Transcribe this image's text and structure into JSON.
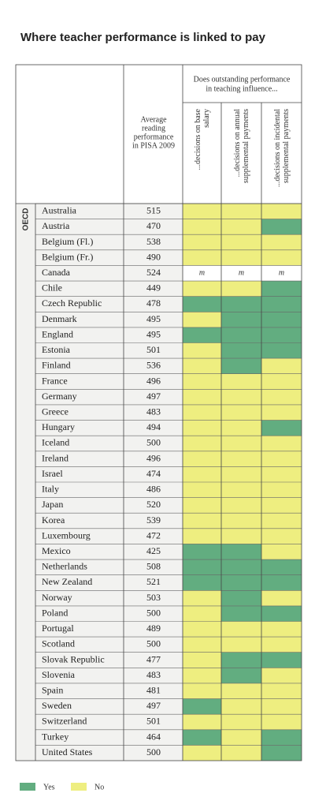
{
  "title": "Where teacher performance is linked to pay",
  "table": {
    "group_label": "OECD",
    "score_header": [
      "Average",
      "reading",
      "performance",
      "in PISA 2009"
    ],
    "influence_header": [
      "Does outstanding performance",
      "in teaching influence..."
    ],
    "columns": [
      [
        "...decisions on base",
        "salary"
      ],
      [
        "...decisions on annual",
        "supplemental payments"
      ],
      [
        "...decisions on incidental",
        "supplemental payments"
      ]
    ],
    "rows": [
      {
        "country": "Australia",
        "score": "515",
        "cells": [
          false,
          false,
          false
        ]
      },
      {
        "country": "Austria",
        "score": "470",
        "cells": [
          false,
          false,
          true
        ]
      },
      {
        "country": "Belgium (Fl.)",
        "score": "538",
        "cells": [
          false,
          false,
          false
        ]
      },
      {
        "country": "Belgium (Fr.)",
        "score": "490",
        "cells": [
          false,
          false,
          false
        ]
      },
      {
        "country": "Canada",
        "score": "524",
        "cells": [
          "m",
          "m",
          "m"
        ]
      },
      {
        "country": "Chile",
        "score": "449",
        "cells": [
          false,
          false,
          true
        ]
      },
      {
        "country": "Czech Republic",
        "score": "478",
        "cells": [
          true,
          true,
          true
        ]
      },
      {
        "country": "Denmark",
        "score": "495",
        "cells": [
          false,
          true,
          true
        ]
      },
      {
        "country": "England",
        "score": "495",
        "cells": [
          true,
          true,
          true
        ]
      },
      {
        "country": "Estonia",
        "score": "501",
        "cells": [
          false,
          true,
          true
        ]
      },
      {
        "country": "Finland",
        "score": "536",
        "cells": [
          false,
          true,
          false
        ]
      },
      {
        "country": "France",
        "score": "496",
        "cells": [
          false,
          false,
          false
        ]
      },
      {
        "country": "Germany",
        "score": "497",
        "cells": [
          false,
          false,
          false
        ]
      },
      {
        "country": "Greece",
        "score": "483",
        "cells": [
          false,
          false,
          false
        ]
      },
      {
        "country": "Hungary",
        "score": "494",
        "cells": [
          false,
          false,
          true
        ]
      },
      {
        "country": "Iceland",
        "score": "500",
        "cells": [
          false,
          false,
          false
        ]
      },
      {
        "country": "Ireland",
        "score": "496",
        "cells": [
          false,
          false,
          false
        ]
      },
      {
        "country": "Israel",
        "score": "474",
        "cells": [
          false,
          false,
          false
        ]
      },
      {
        "country": "Italy",
        "score": "486",
        "cells": [
          false,
          false,
          false
        ]
      },
      {
        "country": "Japan",
        "score": "520",
        "cells": [
          false,
          false,
          false
        ]
      },
      {
        "country": "Korea",
        "score": "539",
        "cells": [
          false,
          false,
          false
        ]
      },
      {
        "country": "Luxembourg",
        "score": "472",
        "cells": [
          false,
          false,
          false
        ]
      },
      {
        "country": "Mexico",
        "score": "425",
        "cells": [
          true,
          true,
          false
        ]
      },
      {
        "country": "Netherlands",
        "score": "508",
        "cells": [
          true,
          true,
          true
        ]
      },
      {
        "country": "New Zealand",
        "score": "521",
        "cells": [
          true,
          true,
          true
        ]
      },
      {
        "country": "Norway",
        "score": "503",
        "cells": [
          false,
          true,
          false
        ]
      },
      {
        "country": "Poland",
        "score": "500",
        "cells": [
          false,
          true,
          true
        ]
      },
      {
        "country": "Portugal",
        "score": "489",
        "cells": [
          false,
          false,
          false
        ]
      },
      {
        "country": "Scotland",
        "score": "500",
        "cells": [
          false,
          false,
          false
        ]
      },
      {
        "country": "Slovak Republic",
        "score": "477",
        "cells": [
          false,
          true,
          true
        ]
      },
      {
        "country": "Slovenia",
        "score": "483",
        "cells": [
          false,
          true,
          false
        ]
      },
      {
        "country": "Spain",
        "score": "481",
        "cells": [
          false,
          false,
          false
        ]
      },
      {
        "country": "Sweden",
        "score": "497",
        "cells": [
          true,
          false,
          false
        ]
      },
      {
        "country": "Switzerland",
        "score": "501",
        "cells": [
          false,
          false,
          false
        ]
      },
      {
        "country": "Turkey",
        "score": "464",
        "cells": [
          true,
          false,
          true
        ]
      },
      {
        "country": "United States",
        "score": "500",
        "cells": [
          false,
          false,
          true
        ]
      }
    ]
  },
  "legend": [
    {
      "label": "Yes",
      "color": "#62ad80"
    },
    {
      "label": "No",
      "color": "#eeee80"
    }
  ]
}
